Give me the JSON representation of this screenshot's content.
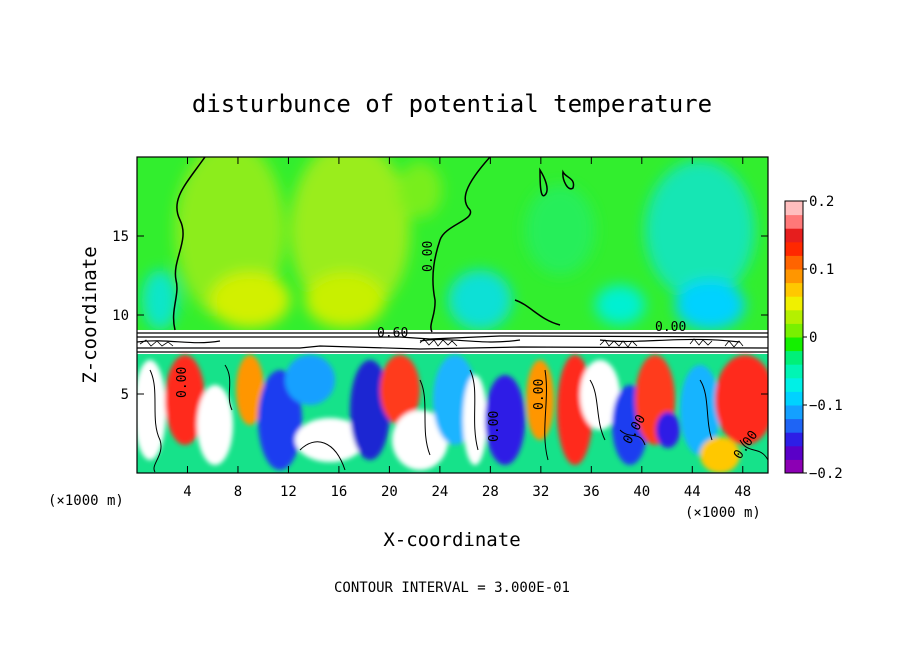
{
  "chart_data": {
    "type": "heatmap",
    "title": "disturbunce of potential temperature",
    "xlabel": "X-coordinate",
    "ylabel": "Z-coordinate",
    "x_unit": "(×1000 m)",
    "x_unit_right": "(×1000 m)",
    "xlim": [
      0,
      50
    ],
    "ylim": [
      0,
      20
    ],
    "x_ticks": [
      4,
      8,
      12,
      16,
      20,
      24,
      28,
      32,
      36,
      40,
      44,
      48
    ],
    "y_ticks": [
      5,
      10,
      15
    ],
    "colorbar": {
      "vmin": -0.2,
      "vmax": 0.2,
      "tick_values": [
        0.2,
        0.1,
        0,
        -0.1,
        -0.2
      ],
      "tick_labels": [
        "0.2",
        "0.1",
        "0",
        "−0.1",
        "−0.2"
      ],
      "colors": [
        "#8c00b4",
        "#5a00c8",
        "#2d1ee6",
        "#1e64f5",
        "#14a0ff",
        "#00d2ff",
        "#00f0e6",
        "#00f5b4",
        "#00f078",
        "#14f000",
        "#78f000",
        "#b4f000",
        "#f0f000",
        "#ffc800",
        "#ff9600",
        "#ff6400",
        "#ff2800",
        "#e61e1e",
        "#ff7878",
        "#ffbebe"
      ]
    },
    "contour_labels": [
      "0.00",
      "0.60",
      "0.00",
      "0.00",
      "0.00",
      "0.00",
      "0.00",
      "0.00"
    ],
    "contour_interval_text": "CONTOUR INTERVAL = 3.000E-01"
  }
}
